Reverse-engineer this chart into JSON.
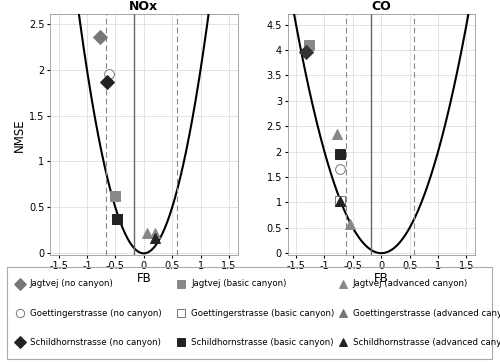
{
  "nox": {
    "title": "NOx",
    "xlabel": "FB",
    "ylabel": "NMSE",
    "xlim": [
      -1.65,
      1.65
    ],
    "ylim": [
      -0.02,
      2.6
    ],
    "yticks": [
      0,
      0.5,
      1.0,
      1.5,
      2.0,
      2.5
    ],
    "yticklabels": [
      "0",
      "0.5",
      "1",
      "1.5",
      "2",
      "2.5"
    ],
    "xticks": [
      -1.5,
      -1.0,
      -0.5,
      0,
      0.5,
      1.0,
      1.5
    ],
    "xticklabels": [
      "-1.5",
      "-1",
      "-0.5",
      "0",
      "0.5",
      "1",
      "1.5"
    ],
    "vline_solid": -0.18,
    "vline_dashed": [
      -0.67,
      0.58
    ],
    "points": [
      {
        "marker": "D",
        "color": "#777777",
        "mfc": "#777777",
        "fb": -0.77,
        "nmse": 2.35,
        "ms": 7
      },
      {
        "marker": "s",
        "color": "#888888",
        "mfc": "#888888",
        "fb": -0.5,
        "nmse": 0.62,
        "ms": 7
      },
      {
        "marker": "^",
        "color": "#888888",
        "mfc": "#888888",
        "fb": 0.05,
        "nmse": 0.22,
        "ms": 7
      },
      {
        "marker": "o",
        "color": "#777777",
        "mfc": "white",
        "fb": -0.62,
        "nmse": 1.95,
        "ms": 7
      },
      {
        "marker": "s",
        "color": "#777777",
        "mfc": "white",
        "fb": -0.47,
        "nmse": 0.37,
        "ms": 7
      },
      {
        "marker": "^",
        "color": "#888888",
        "mfc": "#888888",
        "fb": 0.2,
        "nmse": 0.22,
        "ms": 7
      },
      {
        "marker": "D",
        "color": "#222222",
        "mfc": "#222222",
        "fb": -0.64,
        "nmse": 1.86,
        "ms": 7
      },
      {
        "marker": "s",
        "color": "#222222",
        "mfc": "#222222",
        "fb": -0.47,
        "nmse": 0.37,
        "ms": 7
      },
      {
        "marker": "^",
        "color": "#222222",
        "mfc": "#222222",
        "fb": 0.2,
        "nmse": 0.17,
        "ms": 7
      }
    ]
  },
  "co": {
    "title": "CO",
    "xlabel": "FB",
    "ylabel": "",
    "xlim": [
      -1.65,
      1.65
    ],
    "ylim": [
      -0.04,
      4.7
    ],
    "yticks": [
      0,
      0.5,
      1.0,
      1.5,
      2.0,
      2.5,
      3.0,
      3.5,
      4.0,
      4.5
    ],
    "yticklabels": [
      "0",
      "0.5",
      "1",
      "1.5",
      "2",
      "2.5",
      "3",
      "3.5",
      "4",
      "4.5"
    ],
    "xticks": [
      -1.5,
      -1.0,
      -0.5,
      0,
      0.5,
      1.0,
      1.5
    ],
    "xticklabels": [
      "-1.5",
      "-1",
      "-0.5",
      "0",
      "0.5",
      "1",
      "1.5"
    ],
    "vline_solid": -0.18,
    "vline_dashed": [
      -0.62,
      0.58
    ],
    "points": [
      {
        "marker": "s",
        "color": "#888888",
        "mfc": "#888888",
        "fb": -1.28,
        "nmse": 4.1,
        "ms": 7
      },
      {
        "marker": "D",
        "color": "#333333",
        "mfc": "#333333",
        "fb": -1.32,
        "nmse": 3.97,
        "ms": 7
      },
      {
        "marker": "^",
        "color": "#888888",
        "mfc": "#888888",
        "fb": -0.55,
        "nmse": 0.58,
        "ms": 7
      },
      {
        "marker": "o",
        "color": "#777777",
        "mfc": "white",
        "fb": -0.73,
        "nmse": 1.65,
        "ms": 7
      },
      {
        "marker": "s",
        "color": "#777777",
        "mfc": "white",
        "fb": -0.73,
        "nmse": 1.02,
        "ms": 7
      },
      {
        "marker": "^",
        "color": "#888888",
        "mfc": "#888888",
        "fb": -0.78,
        "nmse": 2.35,
        "ms": 7
      },
      {
        "marker": "s",
        "color": "#222222",
        "mfc": "#222222",
        "fb": -0.73,
        "nmse": 1.95,
        "ms": 7
      },
      {
        "marker": "^",
        "color": "#222222",
        "mfc": "#222222",
        "fb": -0.73,
        "nmse": 1.02,
        "ms": 7
      }
    ]
  },
  "legend_items": [
    {
      "label": "Jagtvej (no canyon)",
      "marker": "D",
      "color": "#777777",
      "mfc": "#777777"
    },
    {
      "label": "Jagtvej (basic canyon)",
      "marker": "s",
      "color": "#888888",
      "mfc": "#888888"
    },
    {
      "label": "Jagtvej (advanced canyon)",
      "marker": "^",
      "color": "#888888",
      "mfc": "#888888"
    },
    {
      "label": "Goettingerstrasse (no canyon)",
      "marker": "o",
      "color": "#777777",
      "mfc": "white"
    },
    {
      "label": "Goettingerstrasse (basic canyon)",
      "marker": "s",
      "color": "#777777",
      "mfc": "white"
    },
    {
      "label": "Goettingerstrasse (advanced canyon)",
      "marker": "^",
      "color": "#777777",
      "mfc": "#777777"
    },
    {
      "label": "Schildhornstrasse (no canyon)",
      "marker": "D",
      "color": "#222222",
      "mfc": "#222222"
    },
    {
      "label": "Schildhornstrasse (basic canyon)",
      "marker": "s",
      "color": "#222222",
      "mfc": "#222222"
    },
    {
      "label": "Schildhornstrasse (advanced canyon)",
      "marker": "^",
      "color": "#222222",
      "mfc": "#222222"
    }
  ],
  "parabola_scale": 2.0,
  "background_color": "#ffffff"
}
